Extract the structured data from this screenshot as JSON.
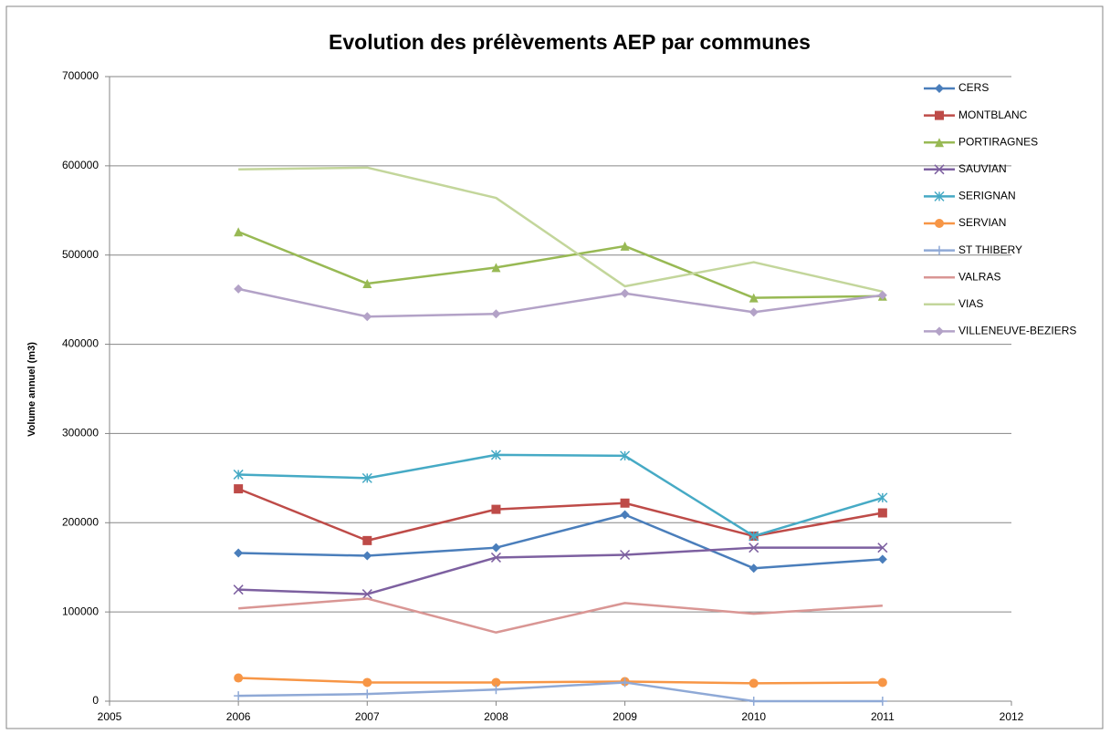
{
  "chart_data": {
    "type": "line",
    "title": "Evolution des prélèvements AEP par communes",
    "y_label": "Volume annuel (m3)",
    "x": [
      2006,
      2007,
      2008,
      2009,
      2010,
      2011
    ],
    "xlim": [
      2005,
      2012
    ],
    "xticks": [
      2005,
      2006,
      2007,
      2008,
      2009,
      2010,
      2011,
      2012
    ],
    "ylim": [
      0,
      700000
    ],
    "yticks": [
      0,
      100000,
      200000,
      300000,
      400000,
      500000,
      600000,
      700000
    ],
    "grid": true,
    "legend": "right",
    "series": [
      {
        "name": "CERS",
        "color": "#4a7ebb",
        "marker": "diamond",
        "values": [
          166000,
          163000,
          172000,
          209000,
          149000,
          159000
        ]
      },
      {
        "name": "MONTBLANC",
        "color": "#be4b48",
        "marker": "square",
        "values": [
          238000,
          180000,
          215000,
          222000,
          185000,
          211000
        ]
      },
      {
        "name": "PORTIRAGNES",
        "color": "#98b954",
        "marker": "triangle",
        "values": [
          526000,
          468000,
          486000,
          510000,
          452000,
          454000
        ]
      },
      {
        "name": "SAUVIAN",
        "color": "#7d60a0",
        "marker": "x",
        "values": [
          125000,
          120000,
          161000,
          164000,
          172000,
          172000
        ]
      },
      {
        "name": "SERIGNAN",
        "color": "#46aac5",
        "marker": "star",
        "values": [
          254000,
          250000,
          276000,
          275000,
          185000,
          228000
        ]
      },
      {
        "name": "SERVIAN",
        "color": "#f79646",
        "marker": "circle",
        "values": [
          26000,
          21000,
          21000,
          22000,
          20000,
          21000
        ]
      },
      {
        "name": "ST THIBERY",
        "color": "#8fa9d6",
        "marker": "plus",
        "values": [
          6000,
          8000,
          13000,
          21000,
          0,
          0
        ]
      },
      {
        "name": "VALRAS",
        "color": "#d99694",
        "marker": "none",
        "values": [
          104000,
          115000,
          77000,
          110000,
          98000,
          107000
        ]
      },
      {
        "name": "VIAS",
        "color": "#c3d69b",
        "marker": "none",
        "values": [
          596000,
          598000,
          564000,
          465000,
          492000,
          459000
        ]
      },
      {
        "name": "VILLENEUVE-BEZIERS",
        "color": "#b3a2c7",
        "marker": "diamond",
        "values": [
          462000,
          431000,
          434000,
          457000,
          436000,
          455000
        ]
      }
    ]
  }
}
